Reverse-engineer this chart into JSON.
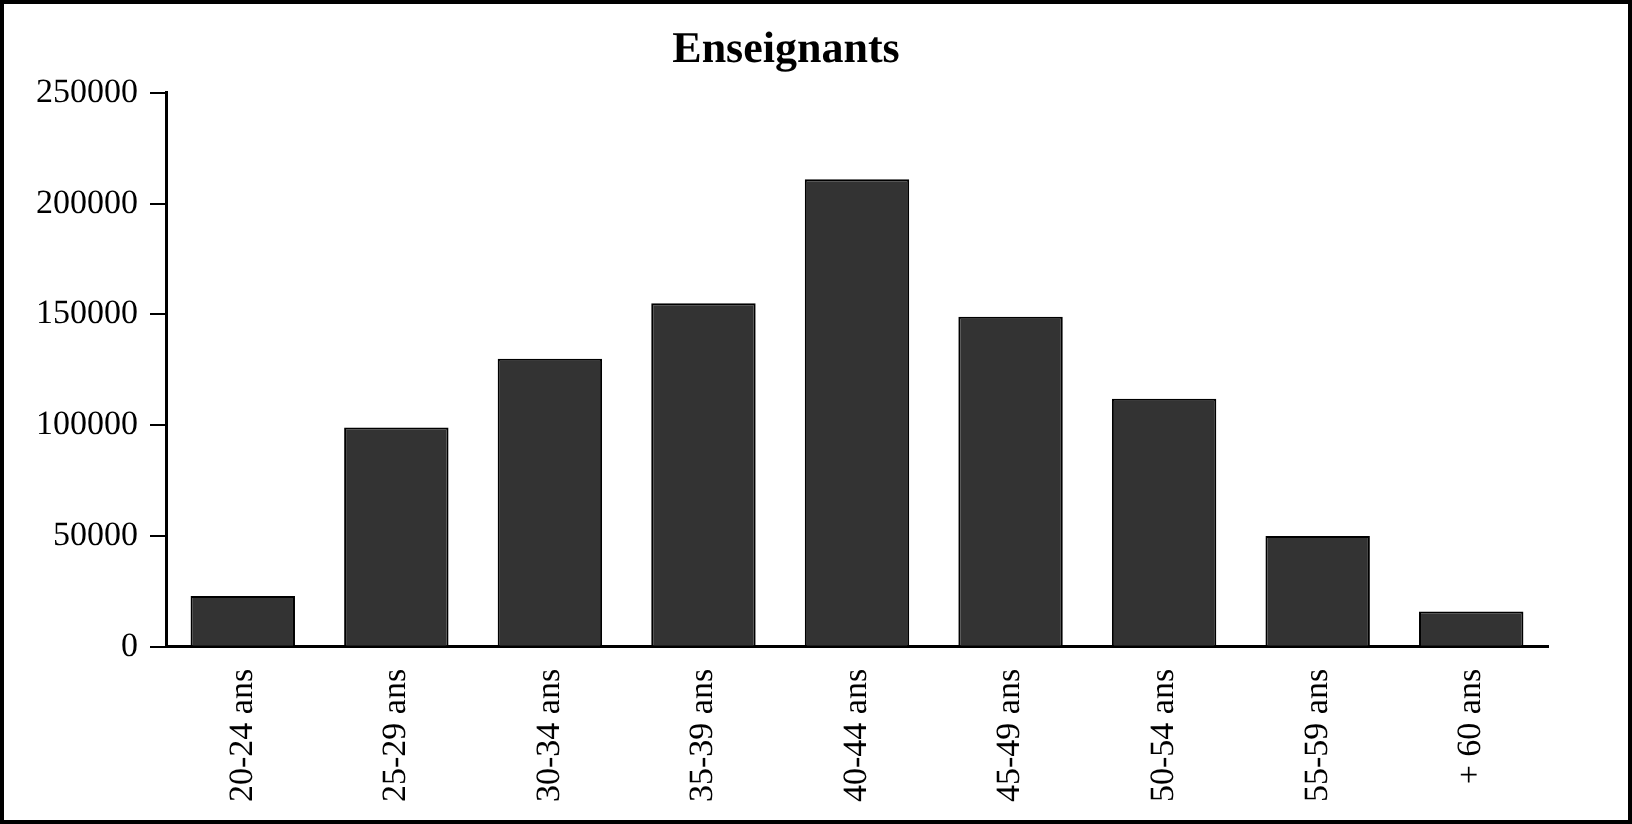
{
  "chart_data": {
    "type": "bar",
    "title": "Enseignants",
    "categories": [
      "20-24 ans",
      "25-29 ans",
      "30-34 ans",
      "35-39 ans",
      "40-44 ans",
      "45-49 ans",
      "50-54 ans",
      "55-59 ans",
      "+ 60 ans"
    ],
    "values": [
      23000,
      99000,
      130000,
      155000,
      211000,
      149000,
      112000,
      50000,
      16000
    ],
    "color": "#333333",
    "ylim": [
      0,
      250000
    ],
    "yticks": [
      0,
      50000,
      100000,
      150000,
      200000,
      250000
    ],
    "grid": false
  }
}
